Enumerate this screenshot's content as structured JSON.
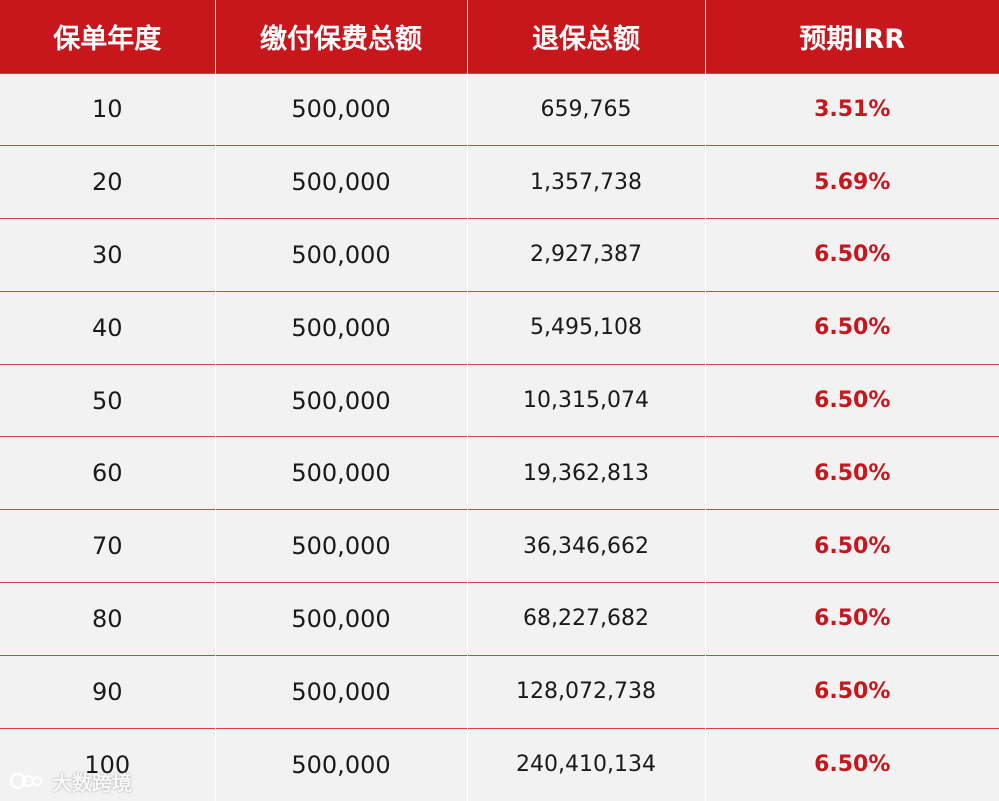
{
  "table": {
    "headers": {
      "year": "保单年度",
      "paid": "缴付保费总额",
      "surrender": "退保总额",
      "irr": "预期IRR"
    },
    "rows": [
      {
        "year": "10",
        "paid": "500,000",
        "surrender": "659,765",
        "irr": "3.51%"
      },
      {
        "year": "20",
        "paid": "500,000",
        "surrender": "1,357,738",
        "irr": "5.69%"
      },
      {
        "year": "30",
        "paid": "500,000",
        "surrender": "2,927,387",
        "irr": "6.50%"
      },
      {
        "year": "40",
        "paid": "500,000",
        "surrender": "5,495,108",
        "irr": "6.50%"
      },
      {
        "year": "50",
        "paid": "500,000",
        "surrender": "10,315,074",
        "irr": "6.50%"
      },
      {
        "year": "60",
        "paid": "500,000",
        "surrender": "19,362,813",
        "irr": "6.50%"
      },
      {
        "year": "70",
        "paid": "500,000",
        "surrender": "36,346,662",
        "irr": "6.50%"
      },
      {
        "year": "80",
        "paid": "500,000",
        "surrender": "68,227,682",
        "irr": "6.50%"
      },
      {
        "year": "90",
        "paid": "500,000",
        "surrender": "128,072,738",
        "irr": "6.50%"
      },
      {
        "year": "100",
        "paid": "500,000",
        "surrender": "240,410,134",
        "irr": "6.50%"
      }
    ]
  },
  "watermark": {
    "text": "大数跨境",
    "icon": "brand-logo-icon"
  },
  "colors": {
    "header_bg": "#c8161d",
    "irr_text": "#c8161d",
    "row_bg": "#f2f2f2",
    "row_divider": "#d9403f"
  }
}
